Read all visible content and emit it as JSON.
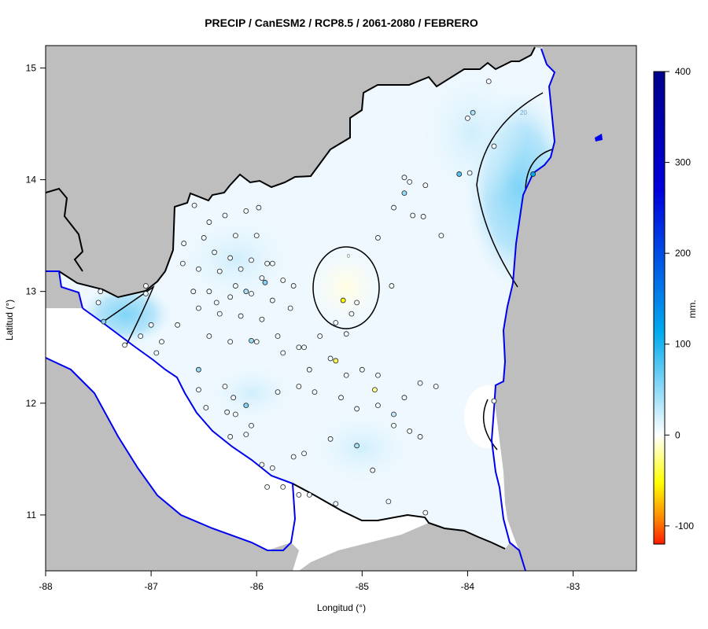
{
  "title": "PRECIP / CanESM2 / RCP8.5 / 2061-2080 / FEBRERO",
  "xlabel": "Longitud (°)",
  "ylabel": "Latitud (°)",
  "colorbar_label": "mm.",
  "colors": {
    "land_outside": "#bebebe",
    "sea": "#ffffff",
    "coastline": "#0000ee",
    "border": "#000000",
    "low": "#ff1a00",
    "mid_low": "#ffff00",
    "zero": "#ffffff",
    "mid_high": "#00aaee",
    "high": "#00008b"
  },
  "map": {
    "lon_range": [
      -88,
      -82.4
    ],
    "lat_range": [
      10.5,
      15.2
    ],
    "lon_ticks": [
      -88,
      -87,
      -86,
      -85,
      -84,
      -83
    ],
    "lat_ticks": [
      11,
      12,
      13,
      14,
      15
    ],
    "lon_tick_labels": [
      "-88",
      "-87",
      "-86",
      "-85",
      "-84",
      "-83"
    ],
    "lat_tick_labels": [
      "11",
      "12",
      "13",
      "14",
      "15"
    ]
  },
  "colorbar": {
    "range": [
      -120,
      400
    ],
    "ticks": [
      -100,
      0,
      100,
      200,
      300,
      400
    ],
    "tick_labels": [
      "-100",
      "0",
      "100",
      "200",
      "300",
      "400"
    ]
  },
  "contours": [
    {
      "label": "20",
      "level": 20
    },
    {
      "label": "0",
      "level": 0
    }
  ],
  "chart_data": {
    "type": "heatmap",
    "title": "PRECIP / CanESM2 / RCP8.5 / 2061-2080 / FEBRERO",
    "xlabel": "Longitud (°)",
    "ylabel": "Latitud (°)",
    "xlim": [
      -88,
      -82.4
    ],
    "ylim": [
      10.5,
      15.2
    ],
    "value_range": [
      -120,
      400
    ],
    "units": "mm.",
    "stations": [
      {
        "lon": -86.59,
        "lat": 13.77,
        "v": 5
      },
      {
        "lon": -86.45,
        "lat": 13.62,
        "v": 5
      },
      {
        "lon": -86.3,
        "lat": 13.68,
        "v": 5
      },
      {
        "lon": -86.1,
        "lat": 13.72,
        "v": 5
      },
      {
        "lon": -85.98,
        "lat": 13.75,
        "v": 5
      },
      {
        "lon": -86.5,
        "lat": 13.48,
        "v": 5
      },
      {
        "lon": -86.2,
        "lat": 13.5,
        "v": 5
      },
      {
        "lon": -86.0,
        "lat": 13.5,
        "v": 5
      },
      {
        "lon": -86.69,
        "lat": 13.43,
        "v": 5
      },
      {
        "lon": -86.4,
        "lat": 13.35,
        "v": 5
      },
      {
        "lon": -86.25,
        "lat": 13.3,
        "v": 5
      },
      {
        "lon": -86.05,
        "lat": 13.28,
        "v": 5
      },
      {
        "lon": -85.85,
        "lat": 13.25,
        "v": 5
      },
      {
        "lon": -86.55,
        "lat": 13.2,
        "v": 5
      },
      {
        "lon": -86.35,
        "lat": 13.18,
        "v": 5
      },
      {
        "lon": -86.15,
        "lat": 13.2,
        "v": 5
      },
      {
        "lon": -85.95,
        "lat": 13.12,
        "v": 5
      },
      {
        "lon": -85.75,
        "lat": 13.1,
        "v": 5
      },
      {
        "lon": -86.45,
        "lat": 13.0,
        "v": 5
      },
      {
        "lon": -86.25,
        "lat": 12.95,
        "v": 5
      },
      {
        "lon": -86.05,
        "lat": 12.98,
        "v": 5
      },
      {
        "lon": -85.85,
        "lat": 12.92,
        "v": 5
      },
      {
        "lon": -86.55,
        "lat": 12.85,
        "v": 5
      },
      {
        "lon": -86.35,
        "lat": 12.8,
        "v": 5
      },
      {
        "lon": -86.15,
        "lat": 12.78,
        "v": 5
      },
      {
        "lon": -85.95,
        "lat": 12.75,
        "v": 5
      },
      {
        "lon": -86.75,
        "lat": 12.7,
        "v": 5
      },
      {
        "lon": -86.45,
        "lat": 12.6,
        "v": 5
      },
      {
        "lon": -86.25,
        "lat": 12.55,
        "v": 5
      },
      {
        "lon": -86.0,
        "lat": 12.55,
        "v": 5
      },
      {
        "lon": -85.8,
        "lat": 12.6,
        "v": 5
      },
      {
        "lon": -85.6,
        "lat": 12.5,
        "v": 5
      },
      {
        "lon": -86.9,
        "lat": 12.55,
        "v": 5
      },
      {
        "lon": -87.0,
        "lat": 12.7,
        "v": 5
      },
      {
        "lon": -86.95,
        "lat": 12.45,
        "v": 5
      },
      {
        "lon": -87.1,
        "lat": 12.6,
        "v": 5
      },
      {
        "lon": -87.25,
        "lat": 12.52,
        "v": 5
      },
      {
        "lon": -87.5,
        "lat": 12.9,
        "v": 5
      },
      {
        "lon": -87.48,
        "lat": 13.0,
        "v": 5
      },
      {
        "lon": -87.05,
        "lat": 13.05,
        "v": 5
      },
      {
        "lon": -86.6,
        "lat": 13.0,
        "v": 5
      },
      {
        "lon": -86.7,
        "lat": 13.25,
        "v": 5
      },
      {
        "lon": -86.1,
        "lat": 13.0,
        "v": 40
      },
      {
        "lon": -85.92,
        "lat": 13.08,
        "v": 60
      },
      {
        "lon": -86.05,
        "lat": 12.56,
        "v": 50
      },
      {
        "lon": -86.1,
        "lat": 11.98,
        "v": 60
      },
      {
        "lon": -86.55,
        "lat": 12.3,
        "v": 50
      },
      {
        "lon": -87.45,
        "lat": 12.73,
        "v": 60
      },
      {
        "lon": -87.05,
        "lat": 12.98,
        "v": 15
      },
      {
        "lon": -86.55,
        "lat": 12.12,
        "v": 5
      },
      {
        "lon": -86.3,
        "lat": 12.15,
        "v": 5
      },
      {
        "lon": -86.22,
        "lat": 12.05,
        "v": 5
      },
      {
        "lon": -86.28,
        "lat": 11.92,
        "v": 5
      },
      {
        "lon": -86.2,
        "lat": 11.9,
        "v": 5
      },
      {
        "lon": -86.48,
        "lat": 11.96,
        "v": 5
      },
      {
        "lon": -86.05,
        "lat": 11.8,
        "v": 5
      },
      {
        "lon": -86.25,
        "lat": 11.7,
        "v": 5
      },
      {
        "lon": -86.1,
        "lat": 11.72,
        "v": 5
      },
      {
        "lon": -85.95,
        "lat": 11.45,
        "v": 5
      },
      {
        "lon": -85.85,
        "lat": 11.42,
        "v": 5
      },
      {
        "lon": -85.65,
        "lat": 11.52,
        "v": 5
      },
      {
        "lon": -85.55,
        "lat": 11.55,
        "v": 5
      },
      {
        "lon": -85.9,
        "lat": 11.25,
        "v": 5
      },
      {
        "lon": -85.5,
        "lat": 11.18,
        "v": 5
      },
      {
        "lon": -85.25,
        "lat": 11.1,
        "v": 5
      },
      {
        "lon": -85.8,
        "lat": 12.1,
        "v": 5
      },
      {
        "lon": -85.6,
        "lat": 12.15,
        "v": 5
      },
      {
        "lon": -85.45,
        "lat": 12.1,
        "v": 5
      },
      {
        "lon": -85.2,
        "lat": 12.05,
        "v": 5
      },
      {
        "lon": -85.05,
        "lat": 11.95,
        "v": 5
      },
      {
        "lon": -84.85,
        "lat": 11.98,
        "v": 5
      },
      {
        "lon": -84.7,
        "lat": 11.9,
        "v": 30
      },
      {
        "lon": -84.55,
        "lat": 11.75,
        "v": 5
      },
      {
        "lon": -84.7,
        "lat": 11.8,
        "v": 5
      },
      {
        "lon": -84.45,
        "lat": 11.7,
        "v": 5
      },
      {
        "lon": -85.05,
        "lat": 11.62,
        "v": 40
      },
      {
        "lon": -84.9,
        "lat": 11.4,
        "v": 5
      },
      {
        "lon": -84.75,
        "lat": 11.12,
        "v": 5
      },
      {
        "lon": -84.4,
        "lat": 11.02,
        "v": 5
      },
      {
        "lon": -85.3,
        "lat": 12.4,
        "v": 5
      },
      {
        "lon": -85.15,
        "lat": 12.25,
        "v": 5
      },
      {
        "lon": -85.0,
        "lat": 12.3,
        "v": 5
      },
      {
        "lon": -84.85,
        "lat": 12.25,
        "v": 5
      },
      {
        "lon": -85.5,
        "lat": 12.3,
        "v": 5
      },
      {
        "lon": -85.55,
        "lat": 12.5,
        "v": 5
      },
      {
        "lon": -85.4,
        "lat": 12.6,
        "v": 5
      },
      {
        "lon": -85.25,
        "lat": 12.38,
        "v": -40
      },
      {
        "lon": -85.18,
        "lat": 12.92,
        "v": -60
      },
      {
        "lon": -84.88,
        "lat": 12.12,
        "v": -25
      },
      {
        "lon": -84.6,
        "lat": 14.02,
        "v": 5
      },
      {
        "lon": -84.55,
        "lat": 13.98,
        "v": 5
      },
      {
        "lon": -84.4,
        "lat": 13.95,
        "v": 5
      },
      {
        "lon": -84.6,
        "lat": 13.88,
        "v": 50
      },
      {
        "lon": -84.7,
        "lat": 13.75,
        "v": 5
      },
      {
        "lon": -84.52,
        "lat": 13.68,
        "v": 5
      },
      {
        "lon": -84.42,
        "lat": 13.67,
        "v": 5
      },
      {
        "lon": -84.85,
        "lat": 13.48,
        "v": 5
      },
      {
        "lon": -84.25,
        "lat": 13.5,
        "v": 5
      },
      {
        "lon": -84.72,
        "lat": 13.05,
        "v": 5
      },
      {
        "lon": -84.08,
        "lat": 14.05,
        "v": 80
      },
      {
        "lon": -83.98,
        "lat": 14.06,
        "v": 5
      },
      {
        "lon": -84.0,
        "lat": 14.55,
        "v": 5
      },
      {
        "lon": -83.95,
        "lat": 14.6,
        "v": 40
      },
      {
        "lon": -83.75,
        "lat": 14.3,
        "v": 5
      },
      {
        "lon": -83.38,
        "lat": 14.05,
        "v": 120
      },
      {
        "lon": -83.8,
        "lat": 14.88,
        "v": 5
      },
      {
        "lon": -83.75,
        "lat": 12.02,
        "v": 5
      },
      {
        "lon": -85.6,
        "lat": 11.18,
        "v": 5
      },
      {
        "lon": -85.75,
        "lat": 11.25,
        "v": 5
      },
      {
        "lon": -85.3,
        "lat": 11.68,
        "v": 5
      },
      {
        "lon": -84.3,
        "lat": 12.15,
        "v": 5
      },
      {
        "lon": -84.45,
        "lat": 12.18,
        "v": 5
      },
      {
        "lon": -84.6,
        "lat": 12.05,
        "v": 5
      },
      {
        "lon": -85.68,
        "lat": 12.85,
        "v": 5
      },
      {
        "lon": -85.65,
        "lat": 13.05,
        "v": 5
      },
      {
        "lon": -85.9,
        "lat": 13.25,
        "v": 5
      },
      {
        "lon": -86.2,
        "lat": 13.05,
        "v": 5
      },
      {
        "lon": -86.38,
        "lat": 12.9,
        "v": 5
      },
      {
        "lon": -85.75,
        "lat": 12.45,
        "v": 5
      },
      {
        "lon": -85.15,
        "lat": 12.62,
        "v": 5
      },
      {
        "lon": -85.1,
        "lat": 12.8,
        "v": 5
      },
      {
        "lon": -85.05,
        "lat": 12.9,
        "v": 5
      },
      {
        "lon": -85.25,
        "lat": 12.72,
        "v": 5
      }
    ]
  }
}
